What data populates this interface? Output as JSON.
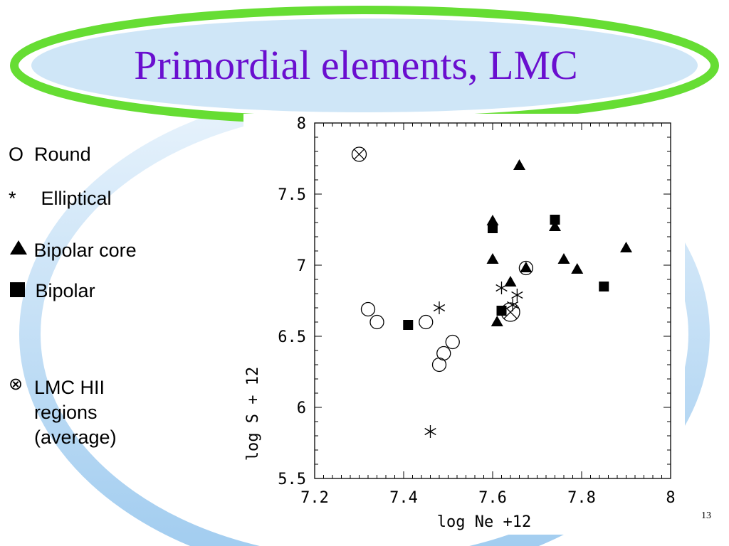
{
  "slide": {
    "title": "Primordial elements, LMC",
    "slide_number": "13"
  },
  "legend": {
    "round": {
      "symbol": "O",
      "label": "Round"
    },
    "elliptical": {
      "symbol": "*",
      "label": "Elliptical"
    },
    "bipolar_core": {
      "label": "Bipolar core"
    },
    "bipolar": {
      "label": "Bipolar"
    },
    "hii": {
      "symbol": "⊗",
      "label_line1": "LMC HII",
      "label_line2": "regions",
      "label_line3": "(average)"
    }
  },
  "colors": {
    "title": "#6a0fcf",
    "ellipse_green": "#66dd33",
    "ellipse_fill": "#cfe6f7",
    "ring_blue": "#b7d9f5"
  },
  "chart_data": {
    "type": "scatter",
    "xlabel": "log Ne +12",
    "ylabel": "log S + 12",
    "xlim": [
      7.2,
      8.0
    ],
    "ylim": [
      5.5,
      8.0
    ],
    "x_ticks": [
      "7.2",
      "7.4",
      "7.6",
      "7.8",
      "8"
    ],
    "y_ticks": [
      "5.5",
      "6",
      "6.5",
      "7",
      "7.5",
      "8"
    ],
    "series": [
      {
        "marker": "circle",
        "points": [
          [
            7.32,
            6.69
          ],
          [
            7.34,
            6.6
          ],
          [
            7.45,
            6.6
          ],
          [
            7.48,
            6.3
          ],
          [
            7.49,
            6.38
          ],
          [
            7.51,
            6.46
          ],
          [
            7.675,
            6.98
          ]
        ]
      },
      {
        "marker": "asterisk",
        "points": [
          [
            7.48,
            6.7
          ],
          [
            7.46,
            5.83
          ],
          [
            7.62,
            6.84
          ],
          [
            7.655,
            6.79
          ],
          [
            7.645,
            6.72
          ]
        ]
      },
      {
        "marker": "triangle",
        "points": [
          [
            7.6,
            7.31
          ],
          [
            7.6,
            7.04
          ],
          [
            7.61,
            6.6
          ],
          [
            7.64,
            6.88
          ],
          [
            7.66,
            7.7
          ],
          [
            7.675,
            6.98
          ],
          [
            7.74,
            7.27
          ],
          [
            7.76,
            7.04
          ],
          [
            7.79,
            6.97
          ],
          [
            7.9,
            7.12
          ]
        ]
      },
      {
        "marker": "square",
        "points": [
          [
            7.41,
            6.58
          ],
          [
            7.6,
            7.26
          ],
          [
            7.62,
            6.68
          ],
          [
            7.74,
            7.32
          ],
          [
            7.85,
            6.85
          ]
        ]
      },
      {
        "marker": "circle-x",
        "points": [
          [
            7.3,
            7.78
          ],
          [
            7.64,
            6.67
          ]
        ]
      }
    ]
  }
}
